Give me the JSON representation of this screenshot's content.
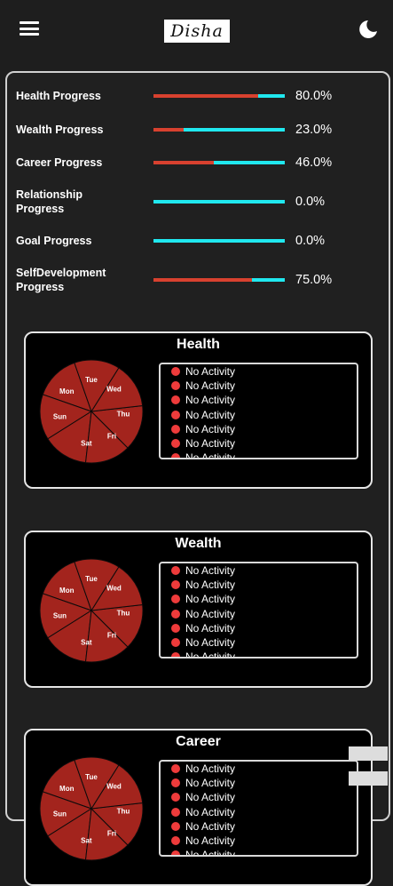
{
  "app": {
    "logo_text": "Disha"
  },
  "progress": [
    {
      "label": "Health Progress",
      "value": "80.0%",
      "fraction": 0.8
    },
    {
      "label": "Wealth Progress",
      "value": "23.0%",
      "fraction": 0.23
    },
    {
      "label": "Career Progress",
      "value": "46.0%",
      "fraction": 0.46
    },
    {
      "label": "Relationship Progress",
      "value": "0.0%",
      "fraction": 0.0
    },
    {
      "label": "Goal Progress",
      "value": "0.0%",
      "fraction": 0.0
    },
    {
      "label": "SelfDevelopment Progress",
      "value": "75.0%",
      "fraction": 0.75
    }
  ],
  "days": [
    "Sun",
    "Mon",
    "Tue",
    "Wed",
    "Thu",
    "Fri",
    "Sat"
  ],
  "cards": [
    {
      "title": "Health",
      "activities": [
        "No Activity",
        "No Activity",
        "No Activity",
        "No Activity",
        "No Activity",
        "No Activity",
        "No Activity"
      ]
    },
    {
      "title": "Wealth",
      "activities": [
        "No Activity",
        "No Activity",
        "No Activity",
        "No Activity",
        "No Activity",
        "No Activity",
        "No Activity"
      ]
    },
    {
      "title": "Career",
      "activities": [
        "No Activity",
        "No Activity",
        "No Activity",
        "No Activity",
        "No Activity",
        "No Activity",
        "No Activity"
      ]
    }
  ],
  "colors": {
    "bar_fill": "#d8412f",
    "bar_track": "#20e8ef",
    "pie_fill": "#a3241d",
    "activity_dot": "#ee3b3b"
  }
}
